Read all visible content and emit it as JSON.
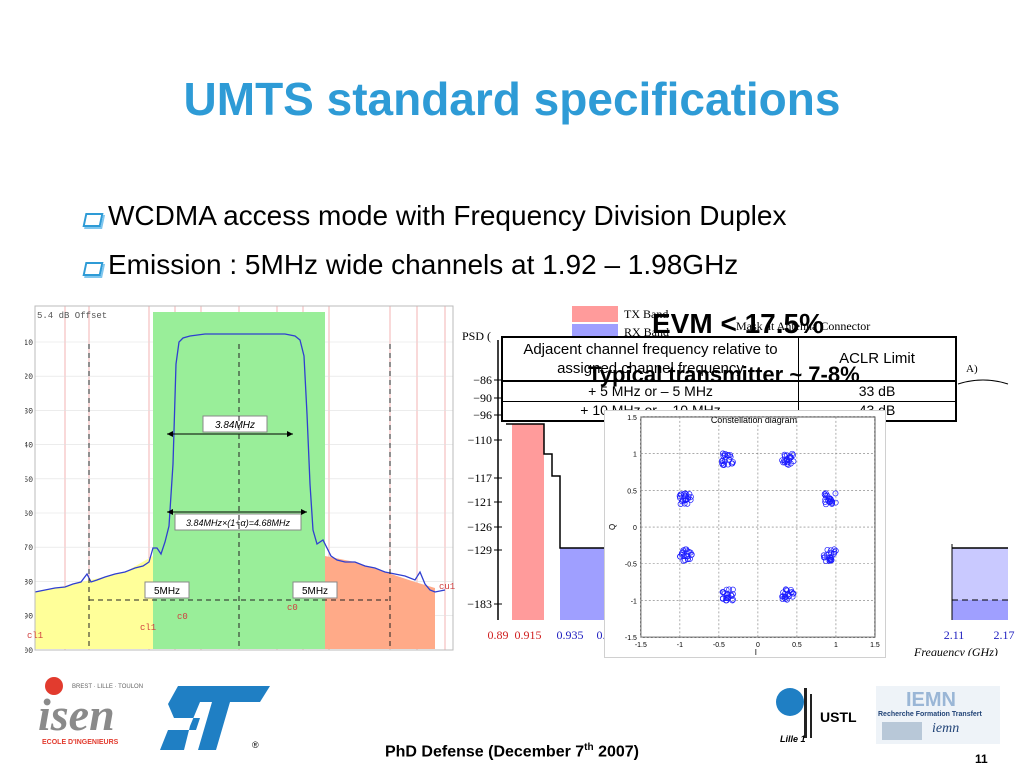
{
  "title": "UMTS standard specifications",
  "bullets": [
    "WCDMA access mode with Frequency Division Duplex",
    "Emission : 5MHz wide channels at 1.92 – 1.98GHz"
  ],
  "spectrum": {
    "offset_label": "5.4 dB Offset",
    "y_ticks": [
      "-10",
      "-20",
      "-30",
      "-40",
      "-50",
      "-60",
      "-70",
      "-80",
      "-90",
      "-100"
    ],
    "bw_label": "3.84MHz",
    "occupied_label": "3.84MHz×(1+α)=4.68MHz",
    "spacing_left": "5MHz",
    "spacing_right": "5MHz",
    "marker_labels": [
      "cl1",
      "cl1",
      "c0",
      "c0",
      "cu1"
    ]
  },
  "psd": {
    "legend_tx": "TX Band",
    "legend_rx": "RX Band",
    "mask_label": "Mask at Antenna Connector",
    "y_axis_label": "PSD (",
    "y_ticks": [
      "−86",
      "−90",
      "−96",
      "−110",
      "−117",
      "−121",
      "−126",
      "−129",
      "−183"
    ],
    "x_ticks": [
      "0.89",
      "0.915",
      "0.935",
      "0.9",
      "2.11",
      "2.17"
    ],
    "x_axis_label": "Frequency (GHz)",
    "colors": {
      "tx": "#ff9b9b",
      "rx": "#9f9fff",
      "rx_light": "#c9c9ff"
    }
  },
  "overlay": {
    "evm": "EVM < 17.5%",
    "typical": "Typical transmitter ~ 7-8%"
  },
  "aclr_table": {
    "col1_header": "Adjacent channel frequency relative to assigned channel frequency",
    "col2_header": "ACLR Limit",
    "rows": [
      {
        "freq": "+ 5 MHz or – 5 MHz",
        "limit": "33 dB"
      },
      {
        "freq": "+ 10 MHz or – 10 MHz",
        "limit": "43 dB"
      }
    ]
  },
  "constellation": {
    "title": "Constellation diagram",
    "x_ticks": [
      "-1.5",
      "-1",
      "-0.5",
      "0",
      "0.5",
      "1",
      "1.5"
    ],
    "y_ticks": [
      "1.5",
      "1",
      "0.5",
      "0",
      "-0.5",
      "-1",
      "-1.5"
    ],
    "xlabel": "I",
    "ylabel": "Q"
  },
  "footer": {
    "text_prefix": "PhD Defense (December 7",
    "text_sup": "th",
    "text_suffix": " 2007)",
    "page": "11"
  },
  "logos": {
    "isen_tag": "BREST · LILLE · TOULON",
    "isen": "isen",
    "isen_sub": "ECOLE D'INGENIEURS",
    "st": "ST",
    "ustl": "USTL",
    "lille": "Lille 1",
    "iemn": "IEMN",
    "iemn_sub": "Recherche Formation Transfert"
  }
}
